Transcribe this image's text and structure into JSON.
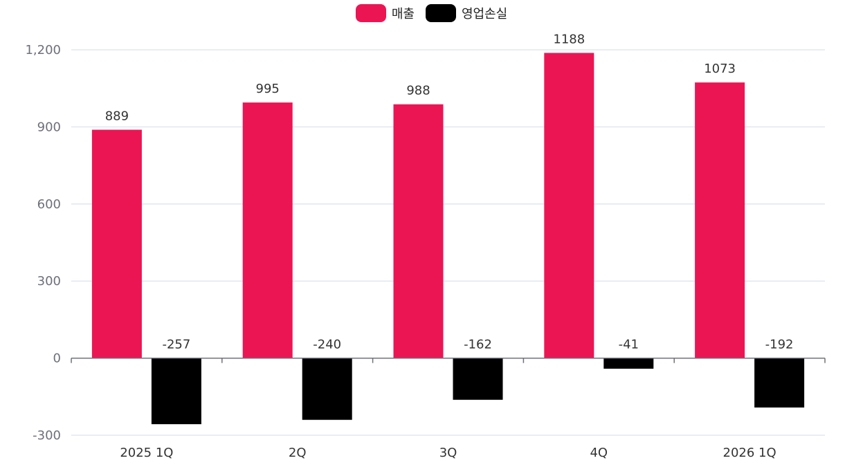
{
  "chart_data": {
    "type": "bar",
    "categories": [
      "2025 1Q",
      "2Q",
      "3Q",
      "4Q",
      "2026 1Q"
    ],
    "series": [
      {
        "name": "매출",
        "color": "#ec1554",
        "values": [
          889,
          995,
          988,
          1188,
          1073
        ]
      },
      {
        "name": "영업손실",
        "color": "#000000",
        "values": [
          -257,
          -240,
          -162,
          -41,
          -192
        ]
      }
    ],
    "yticks": [
      -300,
      0,
      300,
      600,
      900,
      1200
    ],
    "ytick_labels": [
      "-300",
      "0",
      "300",
      "600",
      "900",
      "1,200"
    ],
    "ylim": [
      -300,
      1200
    ],
    "grid": true,
    "legend_position": "top-center",
    "data_labels": true
  }
}
